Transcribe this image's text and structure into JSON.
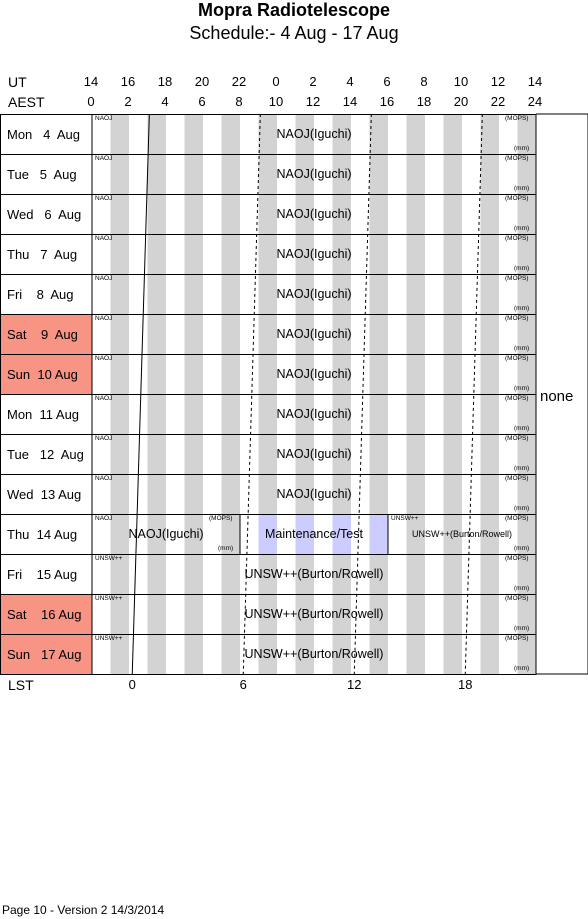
{
  "title": "Mopra Radiotelescope",
  "subtitle": "Schedule:- 4  Aug - 17 Aug",
  "ut_label": "UT",
  "aest_label": "AEST",
  "lst_label": "LST",
  "ut_ticks": [
    "14",
    "16",
    "18",
    "20",
    "22",
    "0",
    "2",
    "4",
    "6",
    "8",
    "10",
    "12",
    "14"
  ],
  "aest_ticks": [
    "0",
    "2",
    "4",
    "6",
    "8",
    "10",
    "12",
    "14",
    "16",
    "18",
    "20",
    "22",
    "24"
  ],
  "lst_ticks": [
    "0",
    "6",
    "12",
    "18"
  ],
  "side_note": "none",
  "footer": "Page 10 - Version 2  14/3/2014",
  "rows": [
    {
      "day": "Mon   4  Aug",
      "weekend": false,
      "blocks": [
        {
          "label": "NAOJ(Iguchi)",
          "tag": "NAOJ",
          "backend": "(MOPS)",
          "band": "(mm)",
          "start": 0,
          "end": 24
        }
      ]
    },
    {
      "day": "Tue   5  Aug",
      "weekend": false,
      "blocks": [
        {
          "label": "NAOJ(Iguchi)",
          "tag": "NAOJ",
          "backend": "(MOPS)",
          "band": "(mm)",
          "start": 0,
          "end": 24
        }
      ]
    },
    {
      "day": "Wed   6  Aug",
      "weekend": false,
      "blocks": [
        {
          "label": "NAOJ(Iguchi)",
          "tag": "NAOJ",
          "backend": "(MOPS)",
          "band": "(mm)",
          "start": 0,
          "end": 24
        }
      ]
    },
    {
      "day": "Thu   7  Aug",
      "weekend": false,
      "blocks": [
        {
          "label": "NAOJ(Iguchi)",
          "tag": "NAOJ",
          "backend": "(MOPS)",
          "band": "(mm)",
          "start": 0,
          "end": 24
        }
      ]
    },
    {
      "day": "Fri    8  Aug",
      "weekend": false,
      "blocks": [
        {
          "label": "NAOJ(Iguchi)",
          "tag": "NAOJ",
          "backend": "(MOPS)",
          "band": "(mm)",
          "start": 0,
          "end": 24
        }
      ]
    },
    {
      "day": "Sat    9  Aug",
      "weekend": true,
      "blocks": [
        {
          "label": "NAOJ(Iguchi)",
          "tag": "NAOJ",
          "backend": "(MOPS)",
          "band": "(mm)",
          "start": 0,
          "end": 24
        }
      ]
    },
    {
      "day": "Sun  10 Aug",
      "weekend": true,
      "blocks": [
        {
          "label": "NAOJ(Iguchi)",
          "tag": "NAOJ",
          "backend": "(MOPS)",
          "band": "(mm)",
          "start": 0,
          "end": 24
        }
      ]
    },
    {
      "day": "Mon  11 Aug",
      "weekend": false,
      "blocks": [
        {
          "label": "NAOJ(Iguchi)",
          "tag": "NAOJ",
          "backend": "(MOPS)",
          "band": "(mm)",
          "start": 0,
          "end": 24
        }
      ]
    },
    {
      "day": "Tue   12  Aug",
      "weekend": false,
      "blocks": [
        {
          "label": "NAOJ(Iguchi)",
          "tag": "NAOJ",
          "backend": "(MOPS)",
          "band": "(mm)",
          "start": 0,
          "end": 24
        }
      ]
    },
    {
      "day": "Wed  13 Aug",
      "weekend": false,
      "blocks": [
        {
          "label": "NAOJ(Iguchi)",
          "tag": "NAOJ",
          "backend": "(MOPS)",
          "band": "(mm)",
          "start": 0,
          "end": 24
        }
      ]
    },
    {
      "day": "Thu  14 Aug",
      "weekend": false,
      "blocks": [
        {
          "label": "NAOJ(Iguchi)",
          "tag": "NAOJ",
          "backend": "(MOPS)",
          "band": "(mm)",
          "start": 0,
          "end": 8
        },
        {
          "label": "Maintenance/Test",
          "tag": "",
          "backend": "",
          "band": "",
          "start": 8,
          "end": 16,
          "maintenance": true
        },
        {
          "label": "UNSW++(Burton/Rowell)",
          "tag": "UNSW++",
          "backend": "(MOPS)",
          "band": "(mm)",
          "start": 16,
          "end": 24,
          "smalllabel": true
        }
      ]
    },
    {
      "day": "Fri    15 Aug",
      "weekend": false,
      "blocks": [
        {
          "label": "UNSW++(Burton/Rowell)",
          "tag": "UNSW++",
          "backend": "(MOPS)",
          "band": "(mm)",
          "start": 0,
          "end": 24
        }
      ]
    },
    {
      "day": "Sat    16 Aug",
      "weekend": true,
      "blocks": [
        {
          "label": "UNSW++(Burton/Rowell)",
          "tag": "UNSW++",
          "backend": "(MOPS)",
          "band": "(mm)",
          "start": 0,
          "end": 24
        }
      ]
    },
    {
      "day": "Sun   17 Aug",
      "weekend": true,
      "blocks": [
        {
          "label": "UNSW++(Burton/Rowell)",
          "tag": "UNSW++",
          "backend": "(MOPS)",
          "band": "(mm)",
          "start": 0,
          "end": 24
        }
      ]
    }
  ],
  "colors": {
    "weekend": "#f79483",
    "stripe": "#d3d3d3",
    "maintenance": "#ccccff",
    "line": "#000000"
  }
}
